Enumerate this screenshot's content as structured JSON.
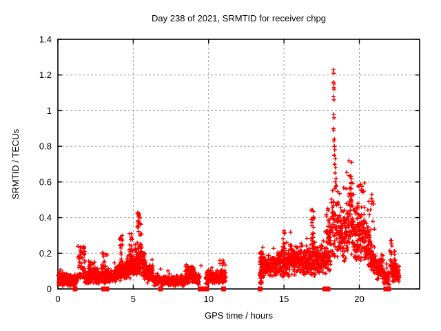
{
  "title": "Day 238 of 2021, SRMTID for receiver chpg",
  "colors": {
    "points": "#ff0000",
    "grid": "#a0a0a0",
    "border": "#000000",
    "background": "#ffffff",
    "text": "#000000"
  },
  "chart_data": {
    "type": "scatter",
    "title": "Day 238 of 2021, SRMTID for receiver chpg",
    "xlabel": "GPS time / hours",
    "ylabel": "SRMTID / TECUs",
    "xlim": [
      0,
      24
    ],
    "ylim": [
      0,
      1.4
    ],
    "xtick_values": [
      0,
      5,
      10,
      15,
      20
    ],
    "xtick_labels": [
      "0",
      "5",
      "10",
      "15",
      "20"
    ],
    "ytick_values": [
      0,
      0.2,
      0.4,
      0.6,
      0.8,
      1,
      1.2,
      1.4
    ],
    "ytick_labels": [
      "0",
      "0.2",
      "0.4",
      "0.6",
      "0.8",
      "1",
      "1.2",
      "1.4"
    ],
    "grid_x": [
      5,
      10,
      15,
      20
    ],
    "grid_y": [
      0.2,
      0.4,
      0.6,
      0.8,
      1,
      1.2
    ],
    "grid_style": "dotted",
    "legend": "none",
    "marker": "plus",
    "marker_color": "#ff0000",
    "series_name": "SRMTID",
    "seed": 1234,
    "baseline_segments_format": "[x_start_hours, x_end_hours, n_points, y_center_TECU, y_spread_TECU]",
    "baseline_segments": [
      [
        0.03,
        1.3,
        170,
        0.05,
        0.032
      ],
      [
        1.8,
        3.05,
        160,
        0.062,
        0.032
      ],
      [
        3.05,
        3.9,
        105,
        0.068,
        0.036
      ],
      [
        3.9,
        4.55,
        95,
        0.1,
        0.05
      ],
      [
        4.55,
        5.1,
        85,
        0.12,
        0.055
      ],
      [
        5.1,
        5.7,
        95,
        0.15,
        0.07
      ],
      [
        5.7,
        6.3,
        85,
        0.085,
        0.045
      ],
      [
        6.3,
        7.15,
        105,
        0.05,
        0.026
      ],
      [
        7.15,
        8.45,
        155,
        0.045,
        0.026
      ],
      [
        8.45,
        9.1,
        85,
        0.075,
        0.042
      ],
      [
        9.1,
        9.4,
        38,
        0.055,
        0.03
      ],
      [
        9.8,
        11.15,
        145,
        0.065,
        0.038
      ],
      [
        13.55,
        14.6,
        145,
        0.125,
        0.055
      ],
      [
        14.6,
        15.4,
        120,
        0.145,
        0.065
      ],
      [
        15.4,
        16.35,
        140,
        0.165,
        0.07
      ],
      [
        16.35,
        17.05,
        95,
        0.15,
        0.068
      ],
      [
        17.05,
        17.8,
        105,
        0.158,
        0.068
      ],
      [
        18.65,
        19.15,
        75,
        0.3,
        0.13
      ],
      [
        19.15,
        19.6,
        65,
        0.37,
        0.15
      ],
      [
        19.6,
        20.3,
        95,
        0.3,
        0.125
      ],
      [
        20.3,
        20.75,
        60,
        0.24,
        0.1
      ],
      [
        20.75,
        21.1,
        35,
        0.15,
        0.07
      ],
      [
        21.1,
        21.6,
        60,
        0.12,
        0.06
      ],
      [
        21.6,
        21.97,
        45,
        0.068,
        0.04
      ],
      [
        22.15,
        22.65,
        70,
        0.09,
        0.05
      ]
    ],
    "spike_columns_format": "[x_start_hours, x_end_hours, n_points, y_min_TECU, y_max_TECU]",
    "spike_columns": [
      [
        1.33,
        1.78,
        55,
        0.06,
        0.24
      ],
      [
        2.05,
        2.25,
        18,
        0.07,
        0.16
      ],
      [
        2.3,
        2.6,
        14,
        0.08,
        0.155
      ],
      [
        2.9,
        3.3,
        20,
        0.09,
        0.21
      ],
      [
        4.1,
        4.3,
        18,
        0.12,
        0.3
      ],
      [
        4.7,
        4.95,
        26,
        0.13,
        0.32
      ],
      [
        5.25,
        5.55,
        34,
        0.16,
        0.45
      ],
      [
        5.68,
        5.85,
        12,
        0.1,
        0.25
      ],
      [
        10.72,
        11.0,
        12,
        0.08,
        0.165
      ],
      [
        13.38,
        13.55,
        45,
        0.03,
        0.21
      ],
      [
        14.92,
        15.08,
        13,
        0.16,
        0.33
      ],
      [
        16.78,
        17.0,
        26,
        0.18,
        0.45
      ],
      [
        17.8,
        18.1,
        55,
        0.1,
        0.45
      ],
      [
        18.1,
        18.65,
        72,
        0.18,
        0.58
      ],
      [
        19.3,
        19.5,
        14,
        0.5,
        0.75
      ],
      [
        19.85,
        19.97,
        9,
        0.42,
        0.62
      ],
      [
        20.05,
        20.35,
        10,
        0.4,
        0.6
      ],
      [
        20.55,
        21.0,
        34,
        0.12,
        0.53
      ],
      [
        22.02,
        22.18,
        20,
        0.09,
        0.3
      ],
      [
        22.3,
        22.45,
        8,
        0.14,
        0.22
      ]
    ],
    "peak_points_format": "[x_hours, y_TECU] explicit high points of the 18.3h spike and isolated points",
    "peak_points": [
      [
        18.28,
        1.23
      ],
      [
        18.3,
        1.21
      ],
      [
        18.29,
        1.16
      ],
      [
        18.31,
        1.15
      ],
      [
        18.3,
        1.13
      ],
      [
        18.32,
        1.12
      ],
      [
        18.29,
        1.08
      ],
      [
        18.31,
        1.06
      ],
      [
        18.3,
        0.98
      ],
      [
        18.32,
        0.96
      ],
      [
        18.28,
        0.9
      ],
      [
        18.3,
        0.89
      ],
      [
        18.33,
        0.84
      ],
      [
        18.31,
        0.83
      ],
      [
        18.35,
        0.8
      ],
      [
        18.37,
        0.78
      ],
      [
        18.34,
        0.75
      ],
      [
        18.4,
        0.73
      ],
      [
        18.36,
        0.7
      ],
      [
        18.42,
        0.68
      ],
      [
        18.38,
        0.65
      ],
      [
        18.45,
        0.62
      ],
      [
        18.41,
        0.6
      ],
      [
        18.47,
        0.58
      ],
      [
        9.5,
        0.13
      ],
      [
        16.95,
        0.31
      ]
    ],
    "zero_markers_desc": "red filled squares on the x-axis (y=0), hours",
    "zero_markers": [
      1.15,
      3.05,
      3.25,
      6.8,
      9.45,
      9.62,
      9.88,
      11.0,
      13.42,
      17.72,
      17.92,
      21.75,
      21.95
    ]
  }
}
